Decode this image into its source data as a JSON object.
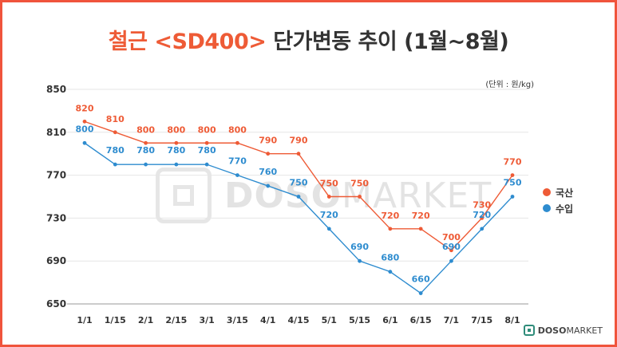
{
  "title": {
    "accent": "철근 <SD400>",
    "rest": " 단가변동 추이 (1월~8월)"
  },
  "unit": "(단위 : 원/kg)",
  "brand": {
    "name_bold": "DOSO",
    "name_light": "MARKET"
  },
  "colors": {
    "domestic": "#ee5b36",
    "import": "#2e8ccf",
    "grid": "#e6e6e6",
    "frame": "#f0543c"
  },
  "chart_data": {
    "type": "line",
    "title": "철근 <SD400> 단가변동 추이 (1월~8월)",
    "xlabel": "",
    "ylabel": "원/kg",
    "categories": [
      "1/1",
      "1/15",
      "2/1",
      "2/15",
      "3/1",
      "3/15",
      "4/1",
      "4/15",
      "5/1",
      "5/15",
      "6/1",
      "6/15",
      "7/1",
      "7/15",
      "8/1"
    ],
    "yticks": [
      650,
      690,
      730,
      770,
      810,
      850
    ],
    "ylim": [
      650,
      850
    ],
    "legend_position": "right",
    "series": [
      {
        "name": "국산",
        "color": "#ee5b36",
        "values": [
          820,
          810,
          800,
          800,
          800,
          800,
          790,
          790,
          750,
          750,
          720,
          720,
          700,
          730,
          770
        ]
      },
      {
        "name": "수입",
        "color": "#2e8ccf",
        "values": [
          800,
          780,
          780,
          780,
          780,
          770,
          760,
          750,
          720,
          690,
          680,
          660,
          690,
          720,
          750
        ]
      }
    ]
  }
}
